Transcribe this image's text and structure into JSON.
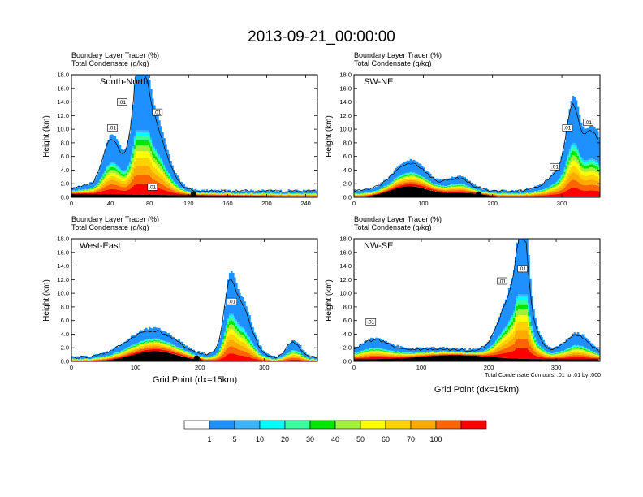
{
  "figure": {
    "title": "2013-09-21_00:00:00",
    "xlabel": "Grid Point (dx=15km)",
    "ylabel": "Height (km)",
    "contour_note": "Total Condensate Contours: .01 to .01 by .000",
    "colors": {
      "levels": [
        "#ffffff",
        "#1e90ff",
        "#3cb4ff",
        "#00ffff",
        "#3cffa0",
        "#00e600",
        "#a0f03c",
        "#ffff00",
        "#ffd200",
        "#ffaa00",
        "#ff6400",
        "#ff0000"
      ]
    }
  },
  "chart_data": [
    {
      "type": "heatmap",
      "panel_label": "South-North",
      "header": [
        "Boundary Layer Tracer   (%)",
        "Total Condensate   (g/kg)"
      ],
      "x_ticks": [
        "0",
        "40",
        "80",
        "120",
        "160",
        "200",
        "240"
      ],
      "xlim": [
        0,
        252
      ],
      "y_ticks": [
        "0.0",
        "2.0",
        "4.0",
        "6.0",
        "8.0",
        "10.0",
        "12.0",
        "14.0",
        "16.0",
        "18.0"
      ],
      "ylim": [
        0,
        18
      ],
      "marker_x": 125,
      "contour_labels": [
        {
          "text": ".01",
          "x": 52,
          "y": 14.0
        },
        {
          "text": ".01",
          "x": 42,
          "y": 10.2
        },
        {
          "text": ".01",
          "x": 88,
          "y": 12.5
        },
        {
          "text": ".01",
          "x": 83,
          "y": 1.5
        }
      ]
    },
    {
      "type": "heatmap",
      "panel_label": "SW-NE",
      "header": [
        "Boundary Layer Tracer   (%)",
        "Total Condensate   (g/kg)"
      ],
      "x_ticks": [
        "0",
        "100",
        "200",
        "300"
      ],
      "xlim": [
        0,
        355
      ],
      "y_ticks": [
        "0.0",
        "2.0",
        "4.0",
        "6.0",
        "8.0",
        "10.0",
        "12.0",
        "14.0",
        "16.0",
        "18.0"
      ],
      "ylim": [
        0,
        18
      ],
      "marker_x": 180,
      "contour_labels": [
        {
          "text": ".01",
          "x": 308,
          "y": 10.2
        },
        {
          "text": ".01",
          "x": 338,
          "y": 11.0
        },
        {
          "text": ".01",
          "x": 290,
          "y": 4.5
        }
      ]
    },
    {
      "type": "heatmap",
      "panel_label": "West-East",
      "header": [
        "Boundary Layer Tracer   (%)",
        "Total Condensate   (g/kg)"
      ],
      "x_ticks": [
        "0",
        "100",
        "200",
        "300"
      ],
      "xlim": [
        0,
        383
      ],
      "y_ticks": [
        "0.0",
        "2.0",
        "4.0",
        "6.0",
        "8.0",
        "10.0",
        "12.0",
        "14.0",
        "16.0",
        "18.0"
      ],
      "ylim": [
        0,
        18
      ],
      "marker_x": 195,
      "contour_labels": [
        {
          "text": ".01",
          "x": 250,
          "y": 8.8
        }
      ]
    },
    {
      "type": "heatmap",
      "panel_label": "NW-SE",
      "header": [
        "Boundary Layer Tracer   (%)",
        "Total Condensate   (g/kg)"
      ],
      "x_ticks": [
        "0",
        "100",
        "200",
        "300"
      ],
      "xlim": [
        0,
        365
      ],
      "y_ticks": [
        "0.0",
        "2.0",
        "4.0",
        "6.0",
        "8.0",
        "10.0",
        "12.0",
        "14.0",
        "16.0",
        "18.0"
      ],
      "ylim": [
        0,
        18
      ],
      "marker_x": 180,
      "contour_labels": [
        {
          "text": ".01",
          "x": 250,
          "y": 13.6
        },
        {
          "text": ".01",
          "x": 220,
          "y": 11.8
        },
        {
          "text": ".01",
          "x": 25,
          "y": 5.8
        }
      ]
    }
  ],
  "colorbar": {
    "labels": [
      "1",
      "5",
      "10",
      "20",
      "30",
      "40",
      "50",
      "60",
      "70",
      "100"
    ]
  }
}
